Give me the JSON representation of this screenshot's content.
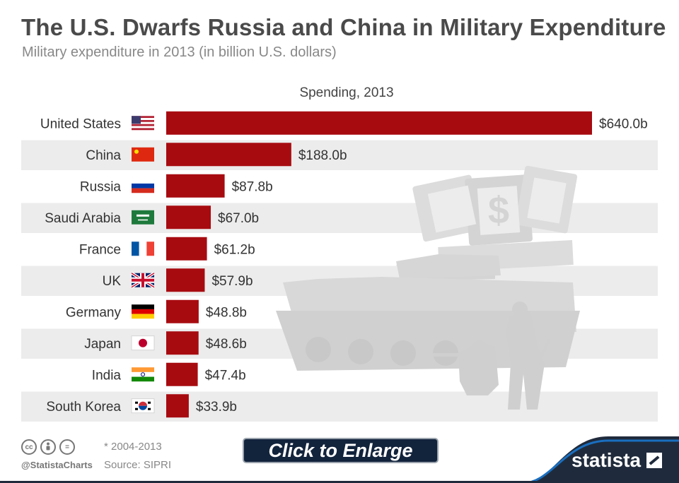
{
  "title": "The U.S. Dwarfs Russia and China in Military Expenditure",
  "subtitle": "Military expenditure in 2013 (in billion U.S. dollars)",
  "colors": {
    "bar": "#a70b10",
    "stripe": "#ececec",
    "title": "#4a4a4a",
    "watermark": "#dcdcdc"
  },
  "chart_data": {
    "type": "bar",
    "orientation": "horizontal",
    "title": "The U.S. Dwarfs Russia and China in Military Expenditure",
    "subtitle": "Military expenditure in 2013 (in billion U.S. dollars)",
    "series_header": "Spending, 2013",
    "categories": [
      "United States",
      "China",
      "Russia",
      "Saudi Arabia",
      "France",
      "UK",
      "Germany",
      "Japan",
      "India",
      "South Korea"
    ],
    "flag_icons": [
      "flag-us-icon",
      "flag-china-icon",
      "flag-russia-icon",
      "flag-saudi-arabia-icon",
      "flag-france-icon",
      "flag-uk-icon",
      "flag-germany-icon",
      "flag-japan-icon",
      "flag-india-icon",
      "flag-south-korea-icon"
    ],
    "values": [
      640.0,
      188.0,
      87.8,
      67.0,
      61.2,
      57.9,
      48.8,
      48.6,
      47.4,
      33.9
    ],
    "value_labels": [
      "$640.0b",
      "$188.0b",
      "$87.8b",
      "$67.0b",
      "$61.2b",
      "$57.9b",
      "$48.8b",
      "$48.6b",
      "$47.4b",
      "$33.9b"
    ],
    "xlim": [
      0,
      640
    ],
    "grid": false,
    "legend": "none"
  },
  "footer": {
    "cc_icons": [
      "cc",
      "by",
      "="
    ],
    "handle": "@StatistaCharts",
    "note": "* 2004-2013",
    "source": "Source: SIPRI",
    "enlarge_label": "Click to Enlarge",
    "brand": "statista"
  }
}
